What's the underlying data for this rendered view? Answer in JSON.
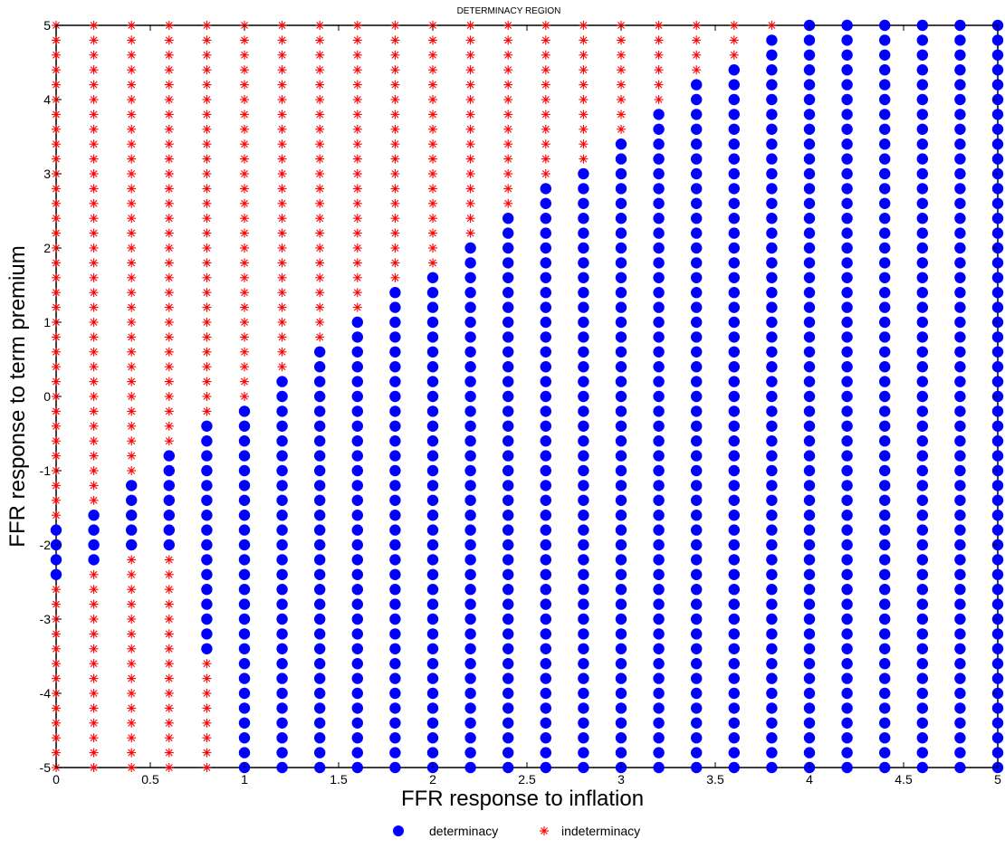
{
  "chart_data": {
    "type": "scatter",
    "title": "DETERMINACY REGION",
    "xlabel": "FFR response to inflation",
    "ylabel": "FFR response to term premium",
    "xlim": [
      0,
      5
    ],
    "ylim": [
      -5,
      5
    ],
    "x_ticks": [
      0,
      0.5,
      1,
      1.5,
      2,
      2.5,
      3,
      3.5,
      4,
      4.5,
      5
    ],
    "x_tick_labels": [
      "0",
      "0.5",
      "1",
      "1.5",
      "2",
      "2.5",
      "3",
      "3.5",
      "4",
      "4.5",
      "5"
    ],
    "y_ticks": [
      -5,
      -4,
      -3,
      -2,
      -1,
      0,
      1,
      2,
      3,
      4,
      5
    ],
    "y_tick_labels": [
      "-5",
      "-4",
      "-3",
      "-2",
      "-1",
      "0",
      "1",
      "2",
      "3",
      "4",
      "5"
    ],
    "grid": false,
    "legend_placement": "bottom",
    "grid_x_values": [
      0,
      0.2,
      0.4,
      0.6,
      0.8,
      1.0,
      1.2,
      1.4,
      1.6,
      1.8,
      2.0,
      2.2,
      2.4,
      2.6,
      2.8,
      3.0,
      3.2,
      3.4,
      3.6,
      3.8,
      4.0,
      4.2,
      4.4,
      4.6,
      4.8,
      5.0
    ],
    "grid_y_step": 0.2,
    "series": [
      {
        "name": "determinacy",
        "marker": "filled-circle",
        "color": "#0000ff",
        "note_ranges": "for each x, y-interval [lo, hi] of determinacy points (step 0.2)",
        "ranges": [
          {
            "x": 0.0,
            "y": [
              [
                -2.4,
                -1.8
              ]
            ]
          },
          {
            "x": 0.2,
            "y": [
              [
                -2.2,
                -1.6
              ]
            ]
          },
          {
            "x": 0.4,
            "y": [
              [
                -2.0,
                -1.2
              ]
            ]
          },
          {
            "x": 0.6,
            "y": [
              [
                -2.0,
                -0.8
              ]
            ]
          },
          {
            "x": 0.8,
            "y": [
              [
                -3.4,
                -0.4
              ]
            ]
          },
          {
            "x": 1.0,
            "y": [
              [
                -5.0,
                -0.2
              ]
            ]
          },
          {
            "x": 1.2,
            "y": [
              [
                -5.0,
                0.2
              ]
            ]
          },
          {
            "x": 1.4,
            "y": [
              [
                -5.0,
                0.6
              ]
            ]
          },
          {
            "x": 1.6,
            "y": [
              [
                -5.0,
                1.0
              ]
            ]
          },
          {
            "x": 1.8,
            "y": [
              [
                -5.0,
                1.4
              ]
            ]
          },
          {
            "x": 2.0,
            "y": [
              [
                -5.0,
                1.6
              ]
            ]
          },
          {
            "x": 2.2,
            "y": [
              [
                -5.0,
                2.0
              ]
            ]
          },
          {
            "x": 2.4,
            "y": [
              [
                -5.0,
                2.4
              ]
            ]
          },
          {
            "x": 2.6,
            "y": [
              [
                -5.0,
                2.8
              ]
            ]
          },
          {
            "x": 2.8,
            "y": [
              [
                -5.0,
                3.0
              ]
            ]
          },
          {
            "x": 3.0,
            "y": [
              [
                -5.0,
                3.4
              ]
            ]
          },
          {
            "x": 3.2,
            "y": [
              [
                -5.0,
                3.8
              ]
            ]
          },
          {
            "x": 3.4,
            "y": [
              [
                -5.0,
                4.2
              ]
            ]
          },
          {
            "x": 3.6,
            "y": [
              [
                -5.0,
                4.4
              ]
            ]
          },
          {
            "x": 3.8,
            "y": [
              [
                -5.0,
                4.8
              ]
            ]
          },
          {
            "x": 4.0,
            "y": [
              [
                -5.0,
                5.0
              ]
            ]
          },
          {
            "x": 4.2,
            "y": [
              [
                -5.0,
                5.0
              ]
            ]
          },
          {
            "x": 4.4,
            "y": [
              [
                -5.0,
                5.0
              ]
            ]
          },
          {
            "x": 4.6,
            "y": [
              [
                -5.0,
                5.0
              ]
            ]
          },
          {
            "x": 4.8,
            "y": [
              [
                -5.0,
                5.0
              ]
            ]
          },
          {
            "x": 5.0,
            "y": [
              [
                -5.0,
                5.0
              ]
            ]
          }
        ]
      },
      {
        "name": "indeterminacy",
        "marker": "asterisk",
        "color": "#ff0000",
        "note_ranges": "all remaining grid points"
      }
    ]
  }
}
